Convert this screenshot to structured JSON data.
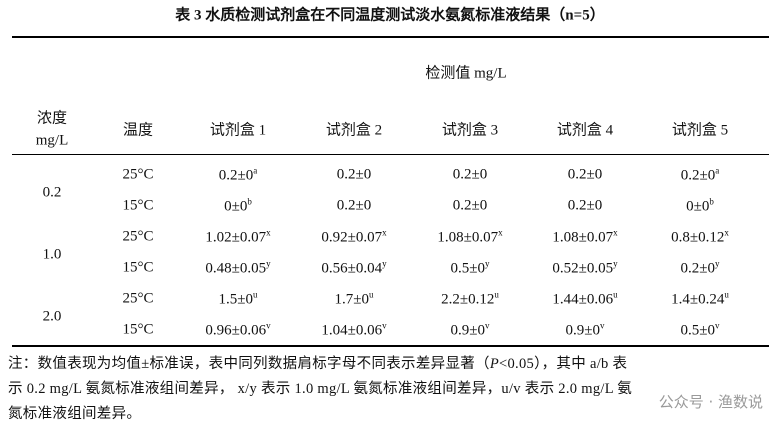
{
  "title": "表 3 水质检测试剂盒在不同温度测试淡水氨氮标准液结果（n=5）",
  "table": {
    "group_header": "检测值 mg/L",
    "conc_header": [
      "浓度",
      "mg/L"
    ],
    "temp_header": "温度",
    "kit_headers": [
      "试剂盒 1",
      "试剂盒 2",
      "试剂盒 3",
      "试剂盒 4",
      "试剂盒 5"
    ],
    "groups": [
      {
        "conc": "0.2",
        "rows": [
          {
            "temp": "25°C",
            "cells": [
              {
                "v": "0.2±0",
                "sup": "a"
              },
              {
                "v": "0.2±0"
              },
              {
                "v": "0.2±0"
              },
              {
                "v": "0.2±0"
              },
              {
                "v": "0.2±0",
                "sup": "a"
              }
            ]
          },
          {
            "temp": "15°C",
            "cells": [
              {
                "v": "0±0",
                "sup": "b"
              },
              {
                "v": "0.2±0"
              },
              {
                "v": "0.2±0"
              },
              {
                "v": "0.2±0"
              },
              {
                "v": "0±0",
                "sup": "b"
              }
            ]
          }
        ]
      },
      {
        "conc": "1.0",
        "rows": [
          {
            "temp": "25°C",
            "cells": [
              {
                "v": "1.02±0.07",
                "sup": "x"
              },
              {
                "v": "0.92±0.07",
                "sup": "x"
              },
              {
                "v": "1.08±0.07",
                "sup": "x"
              },
              {
                "v": "1.08±0.07",
                "sup": "x"
              },
              {
                "v": "0.8±0.12",
                "sup": "x"
              }
            ]
          },
          {
            "temp": "15°C",
            "cells": [
              {
                "v": "0.48±0.05",
                "sup": "y"
              },
              {
                "v": "0.56±0.04",
                "sup": "y"
              },
              {
                "v": "0.5±0",
                "sup": "y"
              },
              {
                "v": "0.52±0.05",
                "sup": "y"
              },
              {
                "v": "0.2±0",
                "sup": "y"
              }
            ]
          }
        ]
      },
      {
        "conc": "2.0",
        "rows": [
          {
            "temp": "25°C",
            "cells": [
              {
                "v": "1.5±0",
                "sup": "u"
              },
              {
                "v": "1.7±0",
                "sup": "u"
              },
              {
                "v": "2.2±0.12",
                "sup": "u"
              },
              {
                "v": "1.44±0.06",
                "sup": "u"
              },
              {
                "v": "1.4±0.24",
                "sup": "u"
              }
            ]
          },
          {
            "temp": "15°C",
            "cells": [
              {
                "v": "0.96±0.06",
                "sup": "v"
              },
              {
                "v": "1.04±0.06",
                "sup": "v"
              },
              {
                "v": "0.9±0",
                "sup": "v"
              },
              {
                "v": "0.9±0",
                "sup": "v"
              },
              {
                "v": "0.5±0",
                "sup": "v"
              }
            ]
          }
        ]
      }
    ]
  },
  "note": {
    "lines": [
      [
        "注：数值表现为均值±标准误，表中同列数据肩标字母不同表示差异显著（",
        "P",
        "<0.05），其中 a/b 表"
      ],
      [
        "示 0.2 mg/L 氨氮标准液组间差异， x/y 表示 1.0 mg/L 氨氮标准液组间差异，u/v 表示 2.0 mg/L 氨"
      ],
      [
        "氮标准液组间差异。"
      ]
    ]
  },
  "watermark": "公众号 · 渔数说"
}
